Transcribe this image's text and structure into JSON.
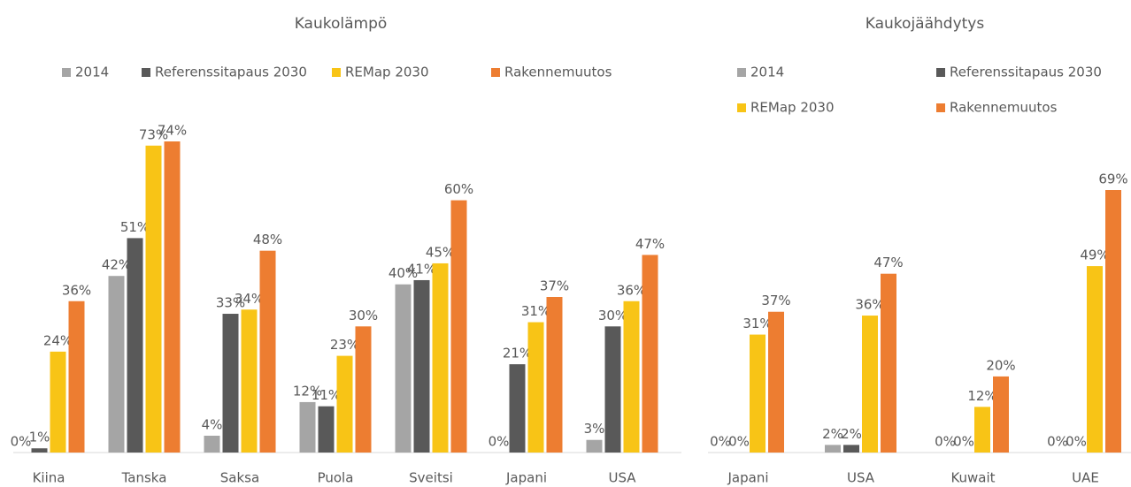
{
  "chart_data": [
    {
      "type": "bar",
      "title": "Kaukolämpö",
      "categories": [
        "Kiina",
        "Tanska",
        "Saksa",
        "Puola",
        "Sveitsi",
        "Japani",
        "USA"
      ],
      "series": [
        {
          "name": "2014",
          "color": "#a5a5a5",
          "values": [
            0,
            42,
            4,
            12,
            40,
            0,
            3
          ],
          "value_labels": [
            "0%",
            "42%",
            "4%",
            "12%",
            "40%",
            "0%",
            "3%"
          ]
        },
        {
          "name": "Referenssitapaus 2030",
          "color": "#595959",
          "values": [
            1,
            51,
            33,
            11,
            41,
            21,
            30
          ],
          "value_labels": [
            "1%",
            "51%",
            "33%",
            "11%",
            "41%",
            "21%",
            "30%"
          ]
        },
        {
          "name": "REMap 2030",
          "color": "#f8c416",
          "values": [
            24,
            73,
            34,
            23,
            45,
            31,
            36
          ],
          "value_labels": [
            "24%",
            "73%",
            "34%",
            "23%",
            "45%",
            "31%",
            "36%"
          ]
        },
        {
          "name": "Rakennemuutos",
          "color": "#ed7d31",
          "values": [
            36,
            74,
            48,
            30,
            60,
            37,
            47
          ],
          "value_labels": [
            "36%",
            "74%",
            "48%",
            "30%",
            "60%",
            "37%",
            "47%"
          ]
        }
      ]
    },
    {
      "type": "bar",
      "title": "Kaukojäähdytys",
      "categories": [
        "Japani",
        "USA",
        "Kuwait",
        "UAE"
      ],
      "series": [
        {
          "name": "2014",
          "color": "#a5a5a5",
          "values": [
            0,
            2,
            0,
            0
          ],
          "value_labels": [
            "0%",
            "2%",
            "0%",
            "0%"
          ]
        },
        {
          "name": "Referenssitapaus 2030",
          "color": "#595959",
          "values": [
            0,
            2,
            0,
            0
          ],
          "value_labels": [
            "0%",
            "2%",
            "0%",
            "0%"
          ]
        },
        {
          "name": "REMap 2030",
          "color": "#f8c416",
          "values": [
            31,
            36,
            12,
            49
          ],
          "value_labels": [
            "31%",
            "36%",
            "12%",
            "49%"
          ]
        },
        {
          "name": "Rakennemuutos",
          "color": "#ed7d31",
          "values": [
            37,
            47,
            20,
            69
          ],
          "value_labels": [
            "37%",
            "47%",
            "20%",
            "69%"
          ]
        }
      ]
    }
  ]
}
